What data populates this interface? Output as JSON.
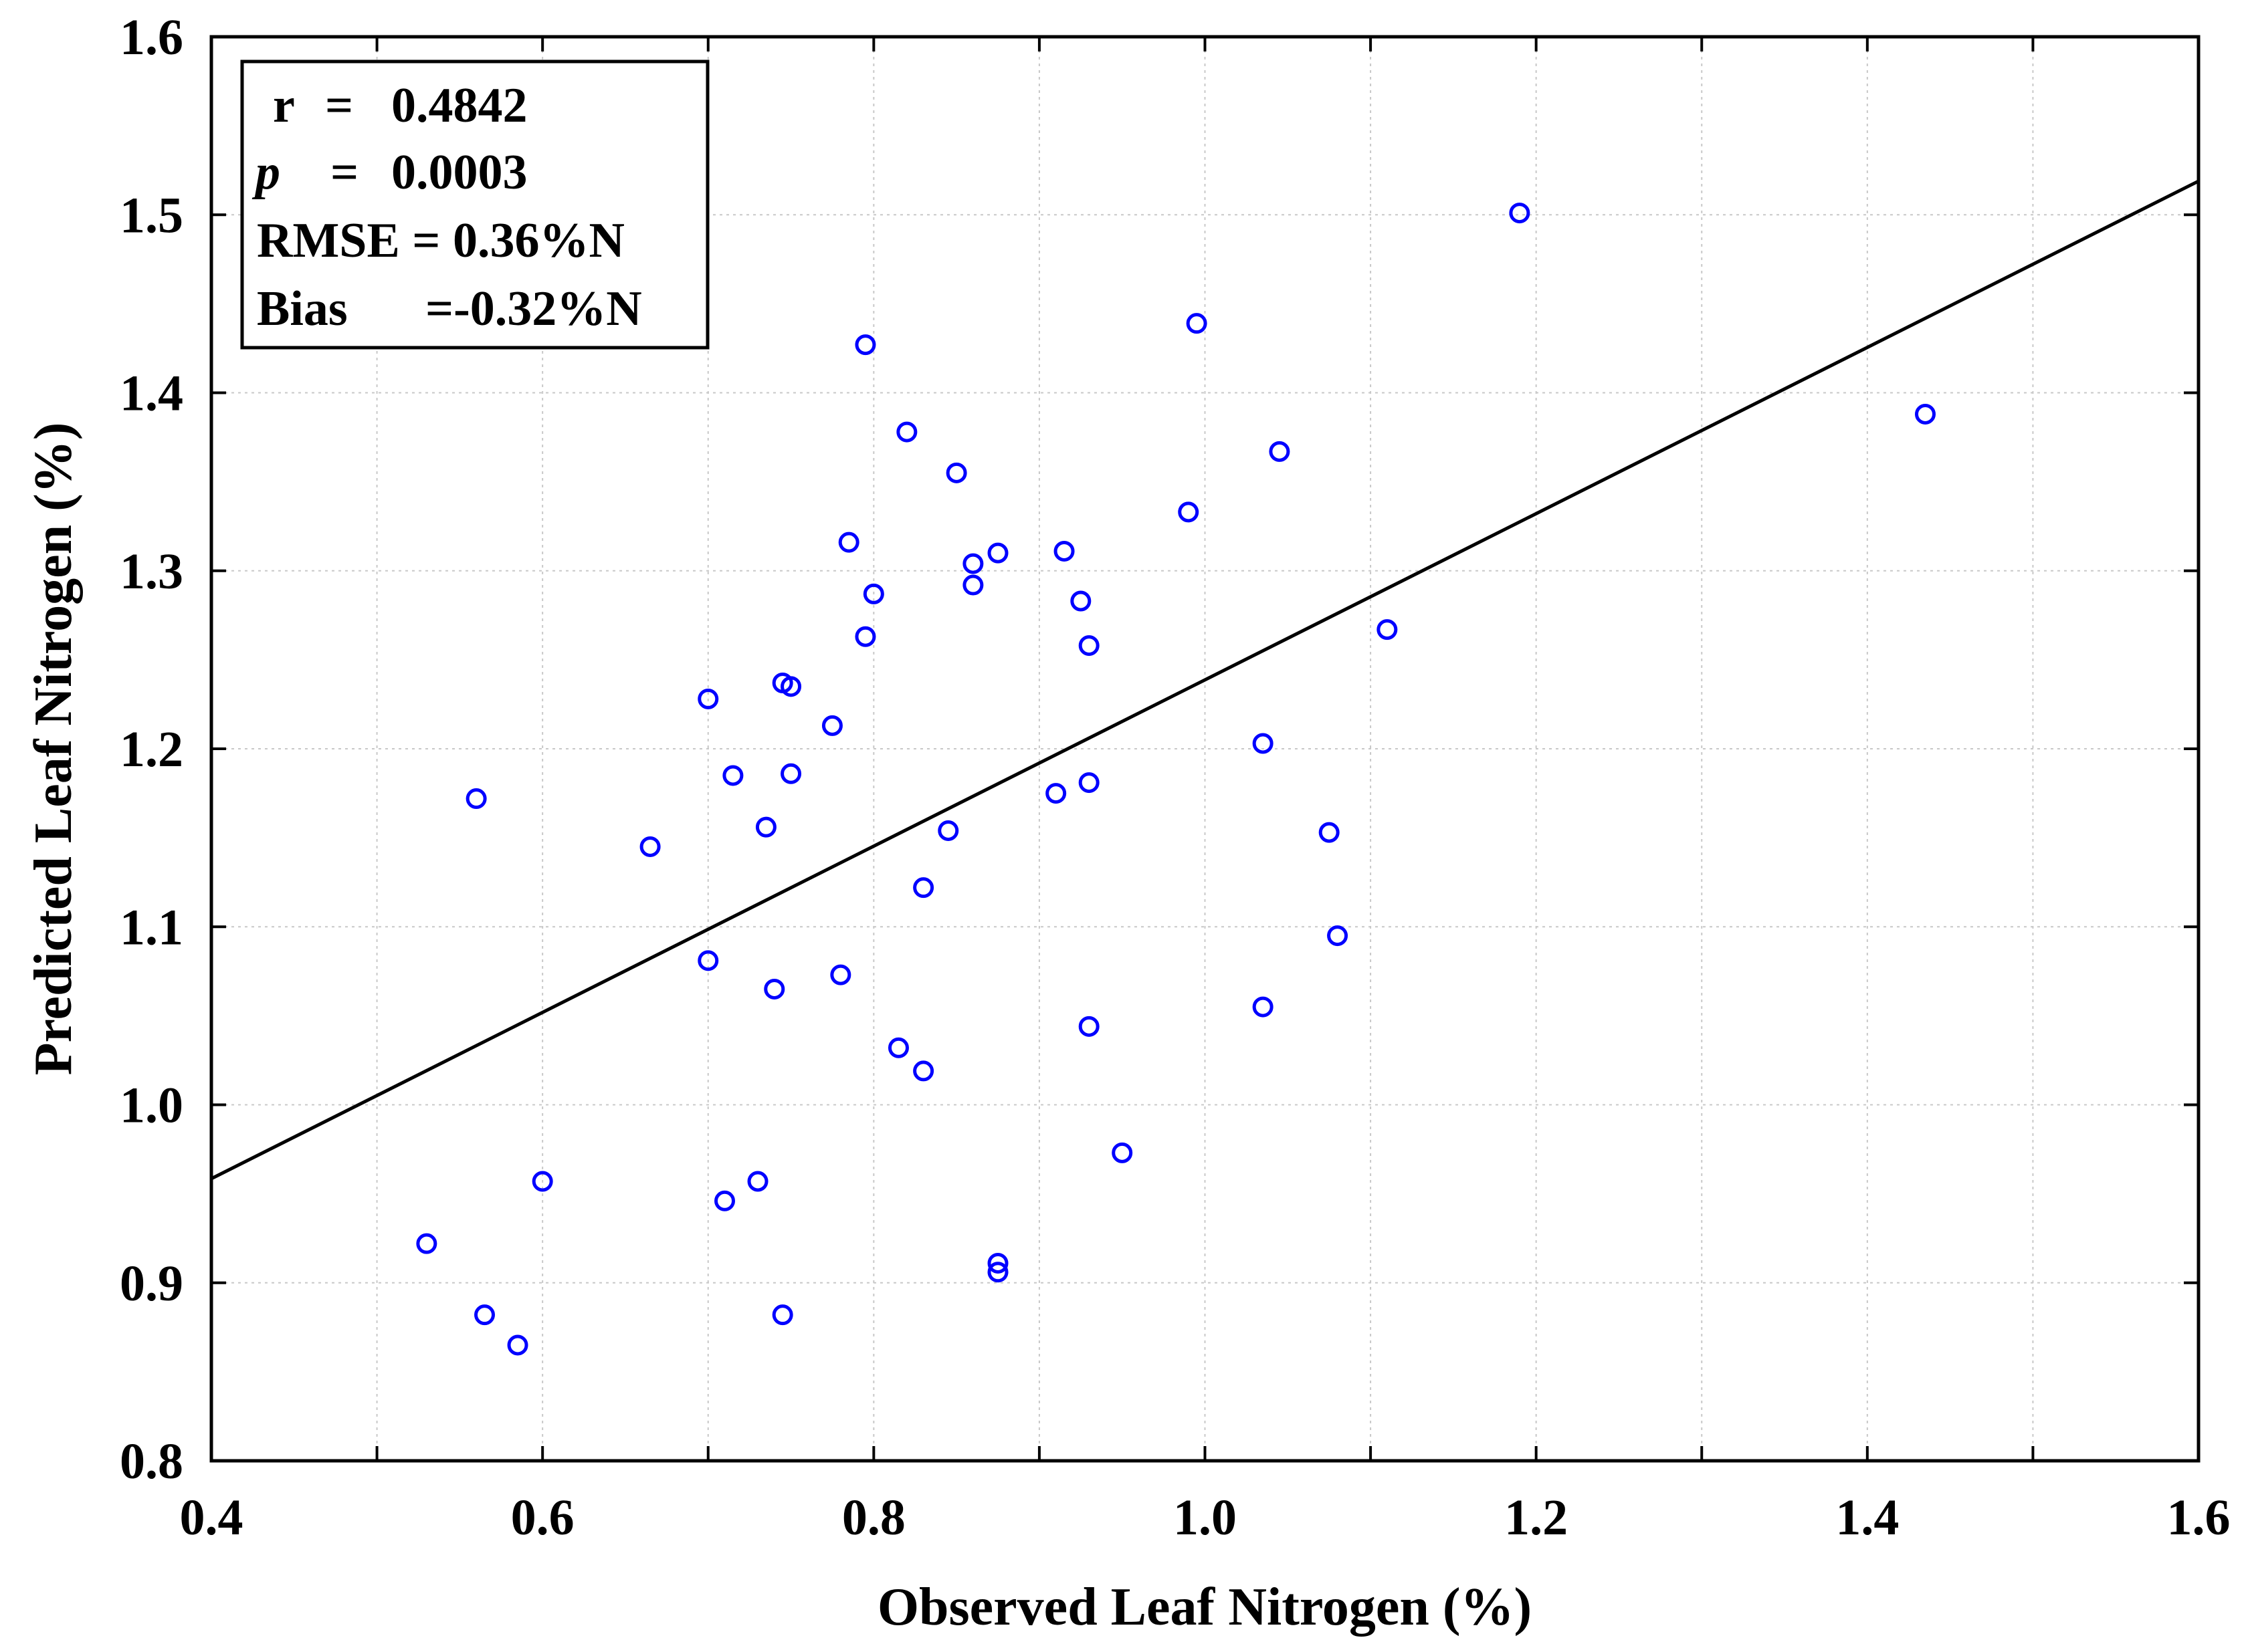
{
  "chart_data": {
    "type": "scatter",
    "title": "",
    "xlabel": "Observed Leaf Nitrogen (%)",
    "ylabel": "Predicted Leaf Nitrogen (%)",
    "xlim": [
      0.4,
      1.6
    ],
    "ylim": [
      0.8,
      1.6
    ],
    "x_ticks": [
      "0.4",
      "0.6",
      "0.8",
      "1.0",
      "1.2",
      "1.4",
      "1.6"
    ],
    "x_tick_values": [
      0.4,
      0.6,
      0.8,
      1.0,
      1.2,
      1.4,
      1.6
    ],
    "x_minor_step": 0.1,
    "y_ticks": [
      "0.8",
      "0.9",
      "1.0",
      "1.1",
      "1.2",
      "1.3",
      "1.4",
      "1.5",
      "1.6"
    ],
    "y_tick_values": [
      0.8,
      0.9,
      1.0,
      1.1,
      1.2,
      1.3,
      1.4,
      1.5,
      1.6
    ],
    "grid": true,
    "marker_color": "#0000ff",
    "line_color": "#000000",
    "fit_line": {
      "slope": 0.467,
      "intercept": 0.7717
    },
    "points": [
      [
        0.53,
        0.922
      ],
      [
        0.56,
        1.172
      ],
      [
        0.565,
        0.882
      ],
      [
        0.585,
        0.865
      ],
      [
        0.6,
        0.957
      ],
      [
        0.665,
        1.145
      ],
      [
        0.7,
        1.228
      ],
      [
        0.7,
        1.081
      ],
      [
        0.71,
        0.946
      ],
      [
        0.715,
        1.185
      ],
      [
        0.73,
        0.957
      ],
      [
        0.735,
        1.156
      ],
      [
        0.74,
        1.065
      ],
      [
        0.745,
        1.237
      ],
      [
        0.745,
        0.882
      ],
      [
        0.75,
        1.235
      ],
      [
        0.75,
        1.186
      ],
      [
        0.775,
        1.213
      ],
      [
        0.78,
        1.073
      ],
      [
        0.785,
        1.316
      ],
      [
        0.795,
        1.427
      ],
      [
        0.795,
        1.263
      ],
      [
        0.8,
        1.287
      ],
      [
        0.815,
        1.032
      ],
      [
        0.82,
        1.378
      ],
      [
        0.83,
        1.122
      ],
      [
        0.83,
        1.019
      ],
      [
        0.845,
        1.154
      ],
      [
        0.85,
        1.355
      ],
      [
        0.86,
        1.304
      ],
      [
        0.86,
        1.292
      ],
      [
        0.875,
        1.31
      ],
      [
        0.875,
        0.911
      ],
      [
        0.875,
        0.906
      ],
      [
        0.91,
        1.175
      ],
      [
        0.915,
        1.311
      ],
      [
        0.925,
        1.283
      ],
      [
        0.93,
        1.258
      ],
      [
        0.93,
        1.181
      ],
      [
        0.93,
        1.044
      ],
      [
        0.95,
        0.973
      ],
      [
        0.99,
        1.333
      ],
      [
        0.995,
        1.439
      ],
      [
        1.035,
        1.203
      ],
      [
        1.035,
        1.055
      ],
      [
        1.045,
        1.367
      ],
      [
        1.075,
        1.153
      ],
      [
        1.08,
        1.095
      ],
      [
        1.11,
        1.267
      ],
      [
        1.19,
        1.501
      ],
      [
        1.435,
        1.388
      ]
    ]
  },
  "stats_box": {
    "r_label": "r",
    "r_eq": "=",
    "r_value": "0.4842",
    "p_label": "p",
    "p_eq": "=",
    "p_value": "0.0003",
    "rmse": "RMSE = 0.36%N",
    "bias_label": "Bias",
    "bias_value": "=-0.32%N"
  }
}
